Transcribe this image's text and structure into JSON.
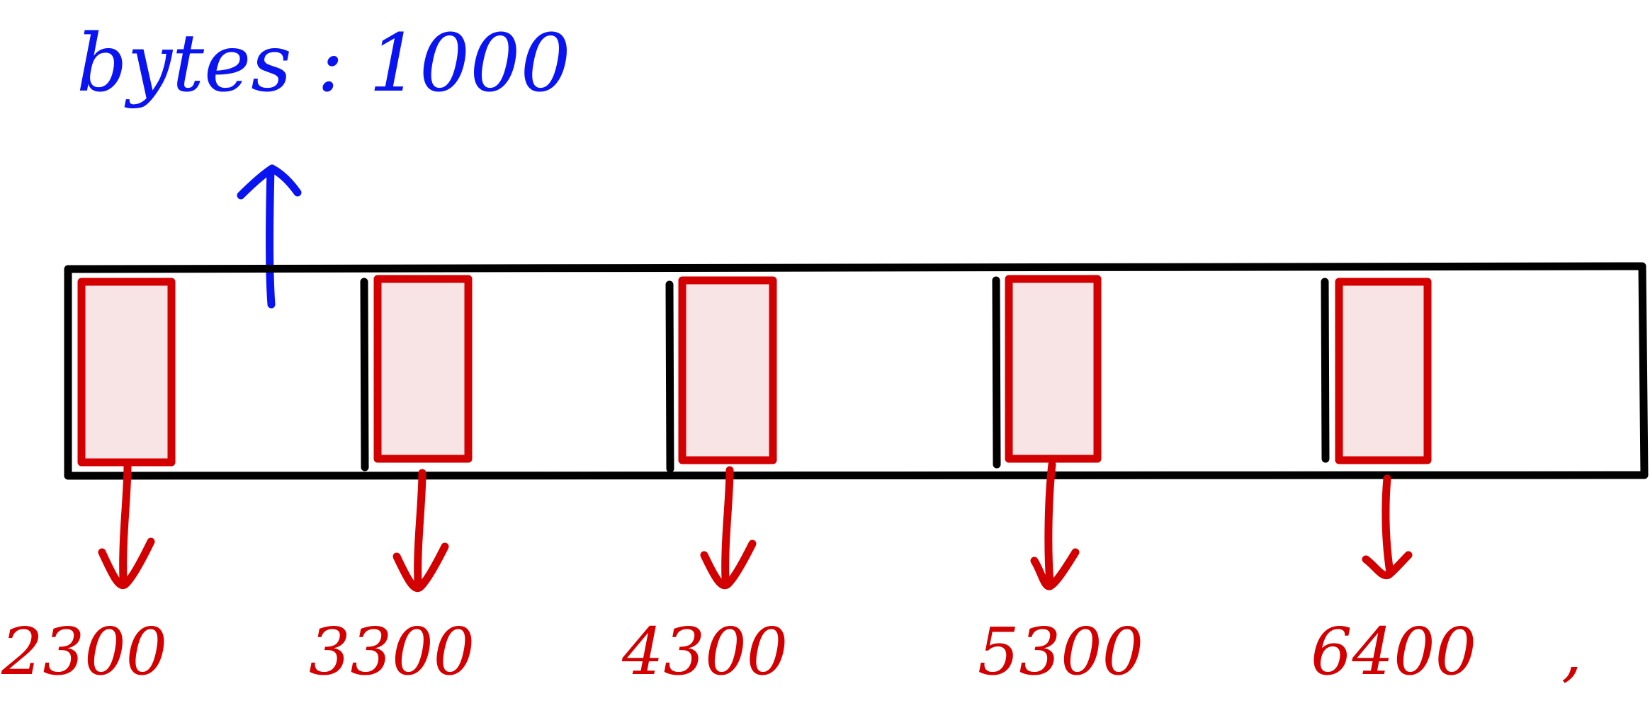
{
  "header": {
    "label": "bytes : 1000"
  },
  "blocks": [
    {
      "value": "2300"
    },
    {
      "value": "3300"
    },
    {
      "value": "4300"
    },
    {
      "value": "5300"
    },
    {
      "value": "6400"
    }
  ],
  "trailing_mark": ",",
  "colors": {
    "header_ink": "#0a14f0",
    "block_ink": "#d20000",
    "block_fill": "#f8e4e4",
    "outline_ink": "#000000"
  }
}
